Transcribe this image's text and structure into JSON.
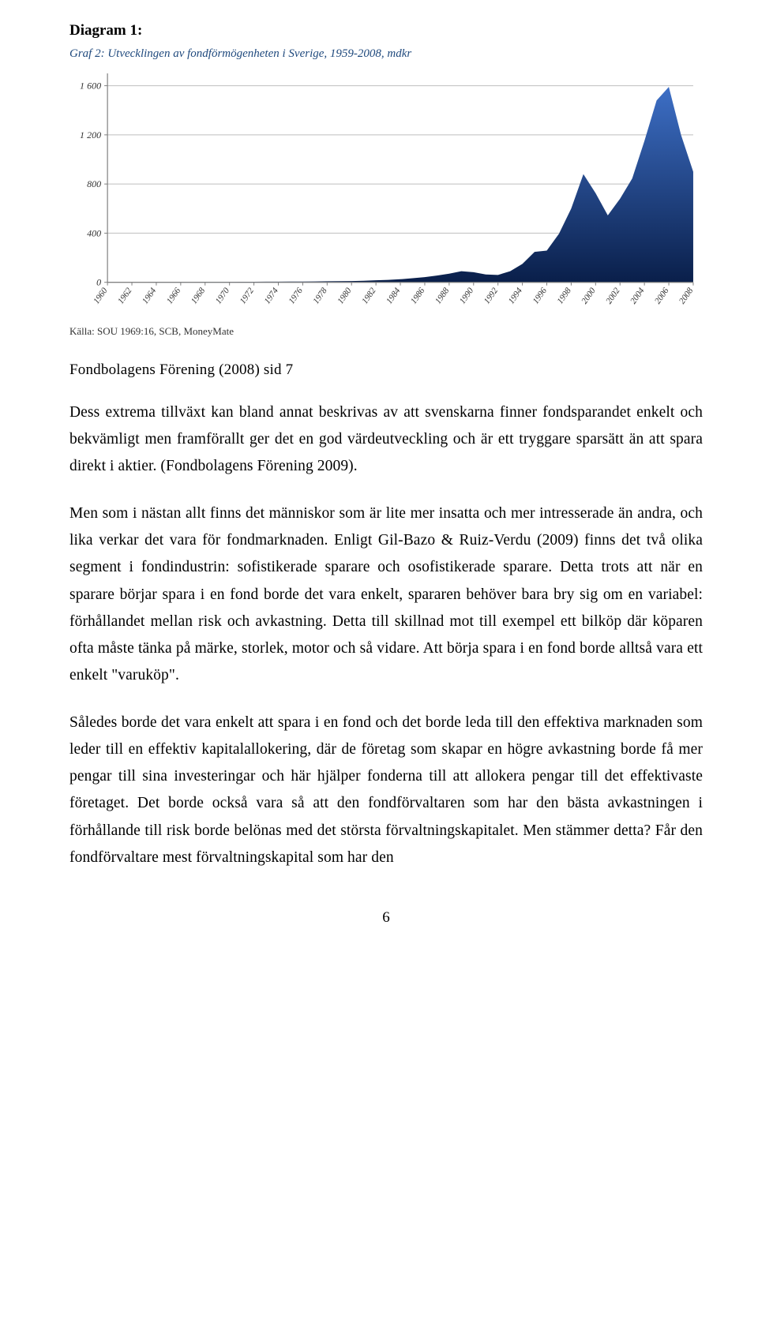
{
  "diagram_label": "Diagram 1:",
  "chart": {
    "type": "area",
    "title": "Graf 2: Utvecklingen av fondförmögenheten i Sverige, 1959-2008, mdkr",
    "title_color": "#1f497d",
    "source": "Källa: SOU 1969:16, SCB, MoneyMate",
    "source_color": "#333333",
    "x_years": [
      1960,
      1962,
      1964,
      1966,
      1968,
      1970,
      1972,
      1974,
      1976,
      1978,
      1980,
      1982,
      1984,
      1986,
      1988,
      1990,
      1992,
      1994,
      1996,
      1998,
      2000,
      2002,
      2004,
      2006,
      2008
    ],
    "y_ticks": [
      0,
      400,
      800,
      1200,
      1600
    ],
    "ylim": [
      0,
      1700
    ],
    "values": [
      1,
      1,
      1,
      1,
      2,
      2,
      2,
      2,
      3,
      3,
      3,
      4,
      4,
      5,
      5,
      6,
      6,
      7,
      8,
      9,
      10,
      12,
      16,
      20,
      25,
      33,
      42,
      55,
      70,
      90,
      82,
      64,
      60,
      90,
      150,
      248,
      258,
      395,
      600,
      880,
      725,
      545,
      680,
      845,
      1150,
      1480,
      1590,
      1200,
      900
    ],
    "fill_top": "#3d6fc6",
    "fill_bottom": "#0a1f4a",
    "grid_color": "#bfbfbf",
    "axis_color": "#808080",
    "tick_font_color": "#333333",
    "tick_font_size": 12,
    "title_font_size": 15,
    "tick_font_style": "italic",
    "background_color": "#ffffff"
  },
  "caption": "Fondbolagens Förening (2008) sid 7",
  "para1": "Dess extrema tillväxt kan bland annat beskrivas av att svenskarna finner fondsparandet enkelt och bekvämligt men framförallt ger det en god värdeutveckling och är ett tryggare sparsätt än att spara direkt i aktier. (Fondbolagens Förening 2009).",
  "para2": "Men som i nästan allt finns det människor som är lite mer insatta och mer intresserade än andra, och lika verkar det vara för fondmarknaden. Enligt Gil-Bazo & Ruiz-Verdu (2009) finns det två olika segment i fondindustrin: sofistikerade sparare och osofistikerade sparare. Detta trots att när en sparare börjar spara i en fond borde det vara enkelt, spararen behöver bara bry sig om en variabel: förhållandet mellan risk och avkastning. Detta till skillnad mot till exempel ett bilköp där köparen ofta måste tänka på märke, storlek, motor och så vidare. Att börja spara i en fond borde alltså vara ett enkelt \"varuköp\".",
  "para3": "Således borde det vara enkelt att spara i en fond och det borde leda till den effektiva marknaden som leder till en effektiv kapitalallokering, där de företag som skapar en högre avkastning borde få mer pengar till sina investeringar och här hjälper fonderna till att allokera pengar till det effektivaste företaget. Det borde också vara så att den fondförvaltaren som har den bästa avkastningen i förhållande till risk borde belönas med det största förvaltningskapitalet. Men stämmer detta? Får den fondförvaltare mest förvaltningskapital som har den",
  "page_number": "6"
}
